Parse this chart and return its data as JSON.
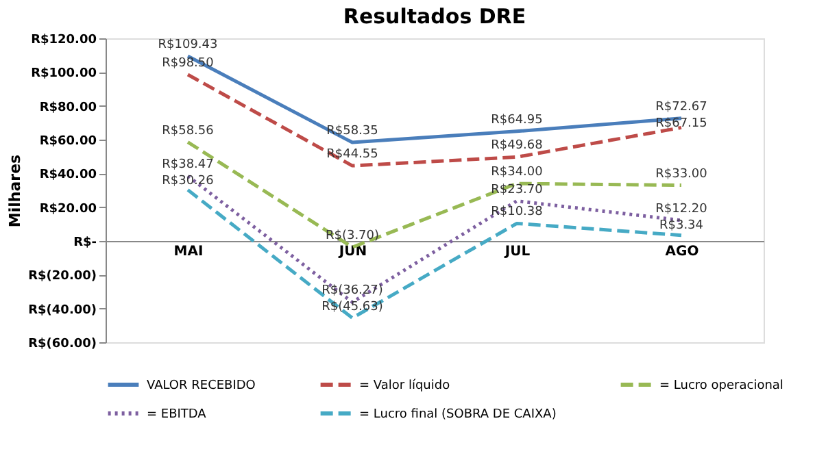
{
  "chart_data": {
    "type": "line",
    "title": "Resultados DRE",
    "ylabel": "Milhares",
    "categories": [
      "MAI",
      "JUN",
      "JUL",
      "AGO"
    ],
    "series": [
      {
        "name": "VALOR RECEBIDO",
        "color": "#4a7ebb",
        "line_style": "solid",
        "values": [
          109.43,
          58.35,
          64.95,
          72.67
        ],
        "value_labels": [
          "R$109.43",
          "R$58.35",
          "R$64.95",
          "R$72.67"
        ]
      },
      {
        "name": "= Valor líquido",
        "color": "#be4b48",
        "line_style": "dashed",
        "values": [
          98.5,
          44.55,
          49.68,
          67.15
        ],
        "value_labels": [
          "R$98.50",
          "R$44.55",
          "R$49.68",
          "R$67.15"
        ]
      },
      {
        "name": "= Lucro operacional",
        "color": "#98b954",
        "line_style": "dashed",
        "values": [
          58.56,
          -3.7,
          34.0,
          33.0
        ],
        "value_labels": [
          "R$58.56",
          "R$(3.70)",
          "R$34.00",
          "R$33.00"
        ]
      },
      {
        "name": "= EBITDA",
        "color": "#7d5fa0",
        "line_style": "dotted",
        "values": [
          38.47,
          -36.27,
          23.7,
          12.2
        ],
        "value_labels": [
          "R$38.47",
          "R$(36.27)",
          "R$23.70",
          "R$12.20"
        ]
      },
      {
        "name": "= Lucro final (SOBRA DE CAIXA)",
        "color": "#46aac5",
        "line_style": "dashed",
        "values": [
          30.26,
          -45.63,
          10.38,
          3.34
        ],
        "value_labels": [
          "R$30.26",
          "R$(45.63)",
          "R$10.38",
          "R$3.34"
        ]
      }
    ],
    "ylim": [
      -60,
      120
    ],
    "yticks": [
      {
        "value": -60,
        "label": "R$(60.00)"
      },
      {
        "value": -40,
        "label": "R$(40.00)"
      },
      {
        "value": -20,
        "label": "R$(20.00)"
      },
      {
        "value": 0,
        "label": "R$-"
      },
      {
        "value": 20,
        "label": "R$20.00"
      },
      {
        "value": 40,
        "label": "R$40.00"
      },
      {
        "value": 60,
        "label": "R$60.00"
      },
      {
        "value": 80,
        "label": "R$80.00"
      },
      {
        "value": 100,
        "label": "R$100.00"
      },
      {
        "value": 120,
        "label": "R$120.00"
      }
    ],
    "grid": false,
    "legend": "bottom",
    "marker": "none"
  }
}
